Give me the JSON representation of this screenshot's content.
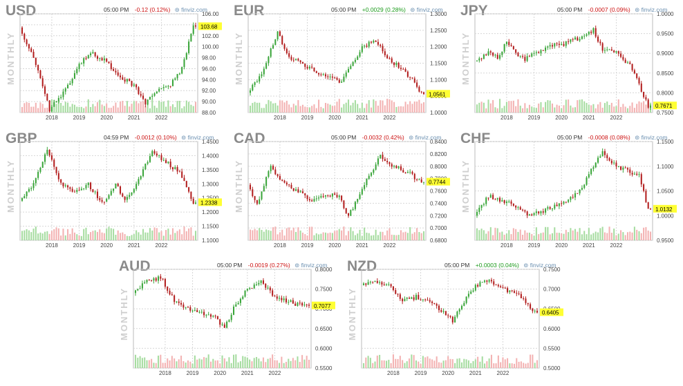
{
  "source": "finviz.com",
  "period_label": "MONTHLY",
  "colors": {
    "up": "#3aa53a",
    "down": "#b21e1e",
    "vol_up": "#a6dca0",
    "vol_down": "#f3b2b2",
    "grid": "#d6d6d6",
    "badge": "#ffff33"
  },
  "chart_data": [
    {
      "type": "candlestick",
      "symbol": "USD",
      "time": "05:00 PM",
      "change": "-0.12",
      "change_pct": "(0.12%)",
      "direction": "down",
      "last": "103.68",
      "y_ticks": [
        "106.00",
        "104.00",
        "102.00",
        "100.00",
        "98.00",
        "96.00",
        "94.00",
        "92.00",
        "90.00",
        "88.00"
      ],
      "ylim": [
        88,
        106
      ],
      "x_ticks": [
        "2018",
        "2019",
        "2020",
        "2021",
        "2022"
      ],
      "anchors": [
        [
          0,
          103.5
        ],
        [
          6,
          98
        ],
        [
          13,
          88.5
        ],
        [
          20,
          92
        ],
        [
          26,
          97
        ],
        [
          32,
          98.7
        ],
        [
          34,
          98
        ],
        [
          38,
          97.5
        ],
        [
          42,
          95
        ],
        [
          50,
          93
        ],
        [
          55,
          89.5
        ],
        [
          60,
          92
        ],
        [
          66,
          93
        ],
        [
          71,
          96
        ],
        [
          76,
          103.68
        ]
      ]
    },
    {
      "type": "candlestick",
      "symbol": "EUR",
      "time": "05:00 PM",
      "change": "+0.0029",
      "change_pct": "(0.28%)",
      "direction": "up",
      "last": "1.0561",
      "y_ticks": [
        "1.3000",
        "1.2500",
        "1.2000",
        "1.1500",
        "1.1000",
        "1.0500",
        "1.0000"
      ],
      "ylim": [
        1.0,
        1.3
      ],
      "x_ticks": [
        "2018",
        "2019",
        "2020",
        "2021",
        "2022"
      ],
      "anchors": [
        [
          0,
          1.06
        ],
        [
          6,
          1.12
        ],
        [
          13,
          1.24
        ],
        [
          18,
          1.17
        ],
        [
          24,
          1.15
        ],
        [
          30,
          1.12
        ],
        [
          36,
          1.11
        ],
        [
          40,
          1.09
        ],
        [
          45,
          1.14
        ],
        [
          50,
          1.2
        ],
        [
          56,
          1.22
        ],
        [
          62,
          1.16
        ],
        [
          68,
          1.13
        ],
        [
          72,
          1.1
        ],
        [
          76,
          1.0561
        ]
      ]
    },
    {
      "type": "candlestick",
      "symbol": "JPY",
      "time": "05:00 PM",
      "change": "-0.0007",
      "change_pct": "(0.09%)",
      "direction": "down",
      "last": "0.7671",
      "y_ticks": [
        "1.0000",
        "0.9500",
        "0.9000",
        "0.8500",
        "0.8000",
        "0.7500"
      ],
      "ylim": [
        0.75,
        1.0
      ],
      "x_ticks": [
        "2018",
        "2019",
        "2020",
        "2021",
        "2022"
      ],
      "anchors": [
        [
          0,
          0.88
        ],
        [
          6,
          0.9
        ],
        [
          10,
          0.89
        ],
        [
          14,
          0.93
        ],
        [
          18,
          0.9
        ],
        [
          22,
          0.885
        ],
        [
          28,
          0.905
        ],
        [
          34,
          0.92
        ],
        [
          40,
          0.925
        ],
        [
          46,
          0.94
        ],
        [
          52,
          0.96
        ],
        [
          56,
          0.91
        ],
        [
          62,
          0.9
        ],
        [
          68,
          0.87
        ],
        [
          72,
          0.82
        ],
        [
          76,
          0.7671
        ]
      ]
    },
    {
      "type": "candlestick",
      "symbol": "GBP",
      "time": "04:59 PM",
      "change": "-0.0012",
      "change_pct": "(0.10%)",
      "direction": "down",
      "last": "1.2338",
      "y_ticks": [
        "1.4500",
        "1.4000",
        "1.3500",
        "1.3000",
        "1.2500",
        "1.2000",
        "1.1500",
        "1.1000"
      ],
      "ylim": [
        1.1,
        1.45
      ],
      "x_ticks": [
        "2018",
        "2019",
        "2020",
        "2021",
        "2022"
      ],
      "anchors": [
        [
          0,
          1.24
        ],
        [
          6,
          1.3
        ],
        [
          12,
          1.42
        ],
        [
          18,
          1.3
        ],
        [
          24,
          1.27
        ],
        [
          30,
          1.3
        ],
        [
          36,
          1.23
        ],
        [
          42,
          1.3
        ],
        [
          46,
          1.24
        ],
        [
          50,
          1.28
        ],
        [
          54,
          1.35
        ],
        [
          58,
          1.41
        ],
        [
          64,
          1.38
        ],
        [
          70,
          1.34
        ],
        [
          76,
          1.2338
        ]
      ]
    },
    {
      "type": "candlestick",
      "symbol": "CAD",
      "time": "05:00 PM",
      "change": "-0.0032",
      "change_pct": "(0.42%)",
      "direction": "down",
      "last": "0.7744",
      "y_ticks": [
        "0.8400",
        "0.8200",
        "0.8000",
        "0.7800",
        "0.7600",
        "0.7400",
        "0.7200",
        "0.7000",
        "0.6800"
      ],
      "ylim": [
        0.68,
        0.84
      ],
      "x_ticks": [
        "2018",
        "2019",
        "2020",
        "2021",
        "2022"
      ],
      "anchors": [
        [
          0,
          0.77
        ],
        [
          4,
          0.74
        ],
        [
          10,
          0.8
        ],
        [
          16,
          0.77
        ],
        [
          22,
          0.76
        ],
        [
          28,
          0.745
        ],
        [
          34,
          0.755
        ],
        [
          40,
          0.75
        ],
        [
          44,
          0.72
        ],
        [
          48,
          0.745
        ],
        [
          52,
          0.78
        ],
        [
          58,
          0.815
        ],
        [
          64,
          0.8
        ],
        [
          70,
          0.79
        ],
        [
          76,
          0.7744
        ]
      ]
    },
    {
      "type": "candlestick",
      "symbol": "CHF",
      "time": "05:00 PM",
      "change": "-0.0008",
      "change_pct": "(0.08%)",
      "direction": "down",
      "last": "1.0132",
      "y_ticks": [
        "1.1500",
        "1.1000",
        "1.0500",
        "1.0000",
        "0.9500"
      ],
      "ylim": [
        0.95,
        1.15
      ],
      "x_ticks": [
        "2018",
        "2019",
        "2020",
        "2021",
        "2022"
      ],
      "anchors": [
        [
          0,
          1.0
        ],
        [
          6,
          1.04
        ],
        [
          12,
          1.03
        ],
        [
          18,
          1.02
        ],
        [
          24,
          1.0
        ],
        [
          30,
          1.01
        ],
        [
          36,
          1.02
        ],
        [
          40,
          1.03
        ],
        [
          46,
          1.05
        ],
        [
          52,
          1.1
        ],
        [
          56,
          1.13
        ],
        [
          62,
          1.1
        ],
        [
          68,
          1.09
        ],
        [
          72,
          1.08
        ],
        [
          76,
          1.0132
        ]
      ]
    },
    {
      "type": "candlestick",
      "symbol": "AUD",
      "time": "05:00 PM",
      "change": "-0.0019",
      "change_pct": "(0.27%)",
      "direction": "down",
      "last": "0.7077",
      "y_ticks": [
        "0.8000",
        "0.7500",
        "0.7000",
        "0.6500",
        "0.6000",
        "0.5500"
      ],
      "ylim": [
        0.55,
        0.8
      ],
      "x_ticks": [
        "2018",
        "2019",
        "2020",
        "2021",
        "2022"
      ],
      "anchors": [
        [
          0,
          0.74
        ],
        [
          6,
          0.77
        ],
        [
          12,
          0.78
        ],
        [
          18,
          0.72
        ],
        [
          24,
          0.7
        ],
        [
          30,
          0.69
        ],
        [
          36,
          0.68
        ],
        [
          40,
          0.65
        ],
        [
          44,
          0.7
        ],
        [
          50,
          0.75
        ],
        [
          56,
          0.77
        ],
        [
          62,
          0.73
        ],
        [
          68,
          0.72
        ],
        [
          72,
          0.71
        ],
        [
          76,
          0.7077
        ]
      ]
    },
    {
      "type": "candlestick",
      "symbol": "NZD",
      "time": "05:00 PM",
      "change": "+0.0003",
      "change_pct": "(0.04%)",
      "direction": "up",
      "last": "0.6405",
      "y_ticks": [
        "0.7500",
        "0.7000",
        "0.6500",
        "0.6000",
        "0.5500",
        "0.5000"
      ],
      "ylim": [
        0.5,
        0.75
      ],
      "x_ticks": [
        "2018",
        "2019",
        "2020",
        "2021",
        "2022"
      ],
      "anchors": [
        [
          0,
          0.71
        ],
        [
          6,
          0.72
        ],
        [
          12,
          0.71
        ],
        [
          18,
          0.67
        ],
        [
          24,
          0.68
        ],
        [
          30,
          0.67
        ],
        [
          36,
          0.64
        ],
        [
          40,
          0.62
        ],
        [
          44,
          0.66
        ],
        [
          50,
          0.71
        ],
        [
          56,
          0.72
        ],
        [
          62,
          0.7
        ],
        [
          68,
          0.69
        ],
        [
          72,
          0.67
        ],
        [
          76,
          0.6405
        ]
      ]
    }
  ]
}
